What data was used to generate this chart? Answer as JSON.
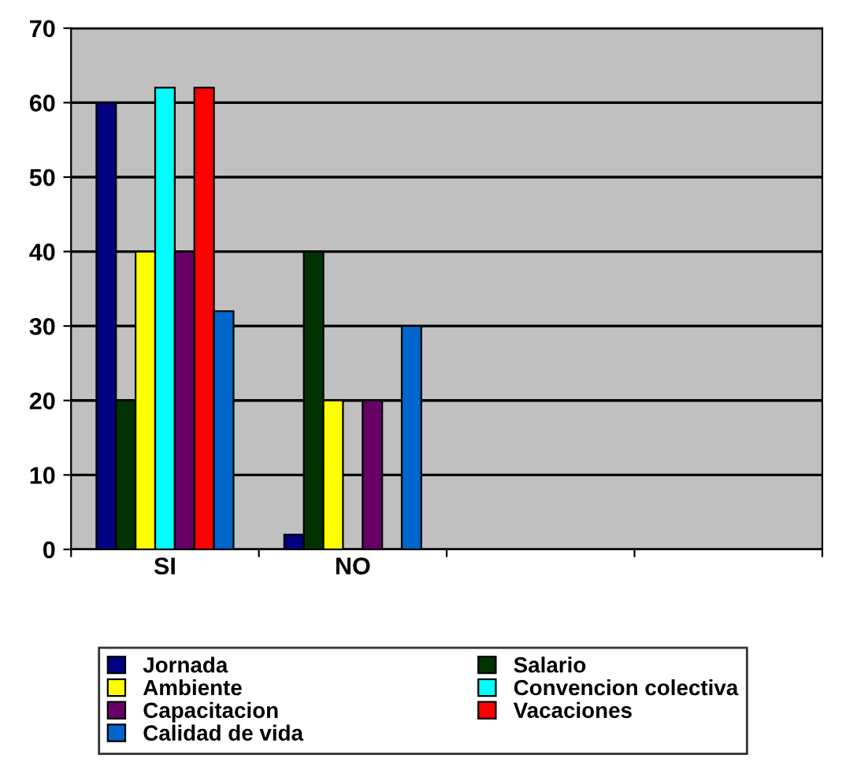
{
  "chart_data": {
    "type": "bar",
    "categories": [
      "SI",
      "NO",
      null,
      null
    ],
    "series": [
      {
        "name": "Jornada",
        "color": "#000080",
        "values": [
          60,
          2,
          null,
          null
        ]
      },
      {
        "name": "Salario",
        "color": "#003300",
        "values": [
          20,
          40,
          null,
          null
        ]
      },
      {
        "name": "Ambiente",
        "color": "#ffff00",
        "values": [
          40,
          20,
          null,
          null
        ]
      },
      {
        "name": "Convencion colectiva",
        "color": "#00ffff",
        "values": [
          62,
          0,
          null,
          null
        ]
      },
      {
        "name": "Capacitacion",
        "color": "#660066",
        "values": [
          40,
          20,
          null,
          null
        ]
      },
      {
        "name": "Vacaciones",
        "color": "#ff0000",
        "values": [
          62,
          0,
          null,
          null
        ]
      },
      {
        "name": "Calidad de vida",
        "color": "#0066cc",
        "values": [
          32,
          30,
          null,
          null
        ]
      }
    ],
    "ylim": [
      0,
      70
    ],
    "yticks": [
      0,
      10,
      20,
      30,
      40,
      50,
      60,
      70
    ],
    "grid": "y",
    "legend": "bottom"
  }
}
